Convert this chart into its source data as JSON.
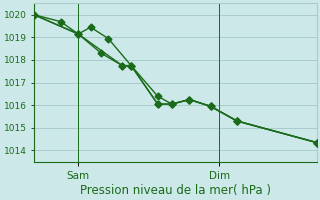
{
  "xlabel": "Pression niveau de la mer( hPa )",
  "bg_color": "#cce8e8",
  "grid_color": "#aacccc",
  "line_color": "#1a6b1a",
  "yticks": [
    1014,
    1015,
    1016,
    1017,
    1018,
    1019,
    1020
  ],
  "ylim": [
    1013.5,
    1020.5
  ],
  "xlim": [
    0,
    16
  ],
  "sam_x": 2.5,
  "dim_x": 10.5,
  "series1_x": [
    0,
    1.5,
    2.5,
    3.2,
    4.2,
    5.5,
    7.0,
    7.8,
    8.8,
    10.0,
    11.5,
    16
  ],
  "series1_y": [
    1020.0,
    1019.7,
    1019.15,
    1019.45,
    1018.95,
    1017.75,
    1016.4,
    1016.05,
    1016.25,
    1015.95,
    1015.3,
    1014.35
  ],
  "series2_x": [
    0,
    2.5,
    3.8,
    5.0,
    5.5,
    7.0,
    7.8,
    8.8,
    10.0,
    11.5,
    16
  ],
  "series2_y": [
    1020.0,
    1019.15,
    1018.3,
    1017.75,
    1017.75,
    1016.05,
    1016.05,
    1016.25,
    1015.95,
    1015.3,
    1014.35
  ],
  "series3_x": [
    0,
    2.5,
    5.0,
    5.5,
    7.0,
    7.8,
    8.8,
    10.0,
    11.5,
    16
  ],
  "series3_y": [
    1020.0,
    1019.15,
    1017.75,
    1017.75,
    1016.05,
    1016.05,
    1016.25,
    1015.95,
    1015.3,
    1014.35
  ],
  "ytick_fontsize": 6.5,
  "xlabel_fontsize": 8.5,
  "xtick_fontsize": 7.5
}
